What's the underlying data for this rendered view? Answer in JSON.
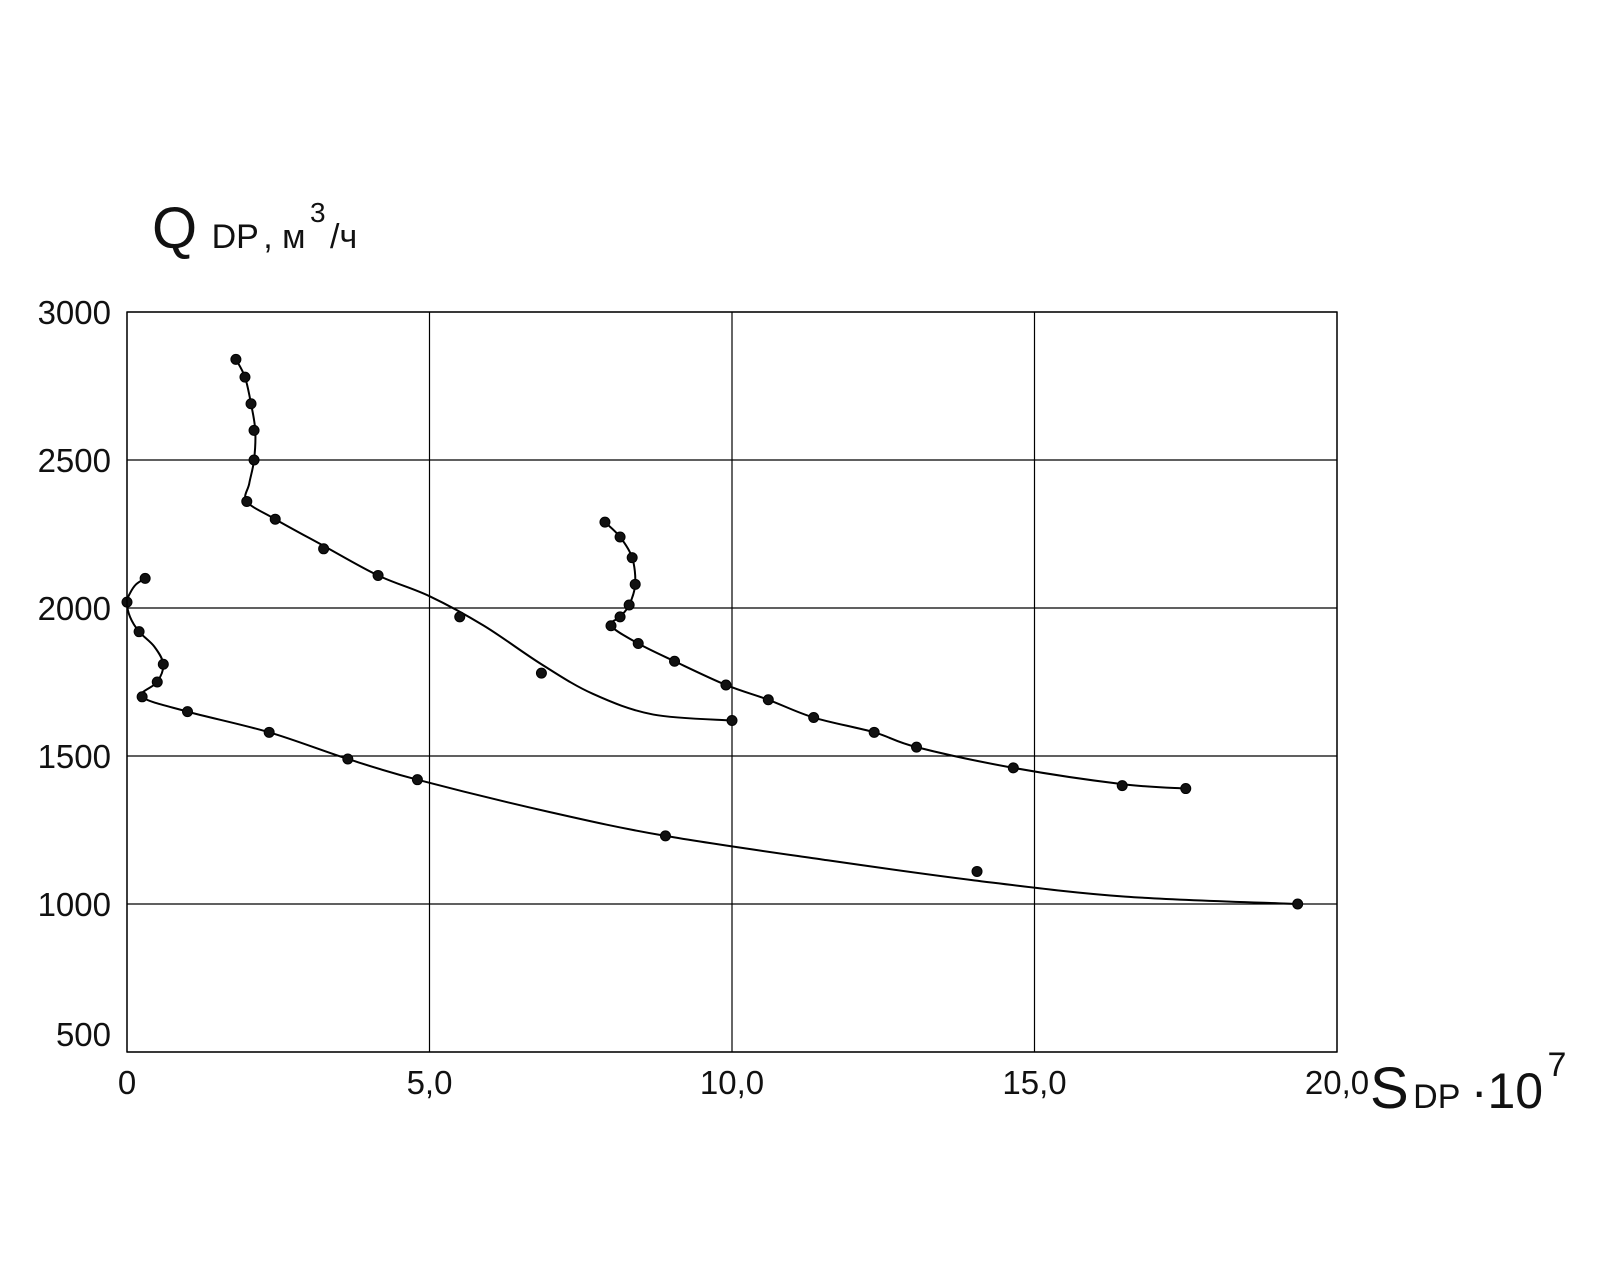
{
  "chart_data": {
    "type": "scatter",
    "title": "",
    "ylabel": {
      "main": "Q",
      "subscript": "DP",
      "unit_prefix": ", м",
      "unit_sup": "3",
      "unit_suffix": "/ч"
    },
    "xlabel": {
      "main": "S",
      "subscript": "DP",
      "multiplier": "·10",
      "multiplier_sup": "7"
    },
    "xlim": [
      0,
      20
    ],
    "ylim": [
      500,
      3000
    ],
    "x_ticks": [
      {
        "value": 0,
        "label": "0"
      },
      {
        "value": 5,
        "label": "5,0"
      },
      {
        "value": 10,
        "label": "10,0"
      },
      {
        "value": 15,
        "label": "15,0"
      },
      {
        "value": 20,
        "label": "20,0"
      }
    ],
    "y_ticks": [
      {
        "value": 500,
        "label": "500"
      },
      {
        "value": 1000,
        "label": "1000"
      },
      {
        "value": 1500,
        "label": "1500"
      },
      {
        "value": 2000,
        "label": "2000"
      },
      {
        "value": 2500,
        "label": "2500"
      },
      {
        "value": 3000,
        "label": "3000"
      }
    ],
    "grid": true,
    "series": [
      {
        "points": [
          [
            0.3,
            2100
          ],
          [
            0.0,
            2020
          ],
          [
            0.2,
            1920
          ],
          [
            0.6,
            1810
          ],
          [
            0.5,
            1750
          ],
          [
            0.25,
            1700
          ],
          [
            1.0,
            1650
          ],
          [
            2.35,
            1580
          ],
          [
            3.65,
            1490
          ],
          [
            4.8,
            1420
          ],
          [
            8.9,
            1230
          ],
          [
            14.05,
            1110
          ],
          [
            19.35,
            1000
          ]
        ],
        "curve": [
          [
            0.3,
            2100
          ],
          [
            0.15,
            2080
          ],
          [
            0.05,
            2050
          ],
          [
            0.0,
            2020
          ],
          [
            0.05,
            1970
          ],
          [
            0.2,
            1920
          ],
          [
            0.45,
            1870
          ],
          [
            0.6,
            1810
          ],
          [
            0.5,
            1750
          ],
          [
            0.25,
            1700
          ],
          [
            1.0,
            1650
          ],
          [
            2.35,
            1580
          ],
          [
            3.65,
            1490
          ],
          [
            4.8,
            1420
          ],
          [
            7.0,
            1310
          ],
          [
            8.9,
            1230
          ],
          [
            11.5,
            1150
          ],
          [
            14.0,
            1080
          ],
          [
            16.5,
            1025
          ],
          [
            19.35,
            1000
          ]
        ]
      },
      {
        "points": [
          [
            1.8,
            2840
          ],
          [
            1.95,
            2780
          ],
          [
            2.05,
            2690
          ],
          [
            2.1,
            2600
          ],
          [
            2.1,
            2500
          ],
          [
            1.98,
            2360
          ],
          [
            2.45,
            2300
          ],
          [
            3.25,
            2200
          ],
          [
            4.15,
            2110
          ],
          [
            5.5,
            1970
          ],
          [
            6.85,
            1780
          ],
          [
            10.0,
            1620
          ]
        ],
        "curve": [
          [
            1.8,
            2840
          ],
          [
            1.95,
            2780
          ],
          [
            2.05,
            2690
          ],
          [
            2.12,
            2600
          ],
          [
            2.1,
            2500
          ],
          [
            2.02,
            2420
          ],
          [
            1.98,
            2360
          ],
          [
            2.45,
            2300
          ],
          [
            3.25,
            2210
          ],
          [
            4.15,
            2110
          ],
          [
            5.0,
            2040
          ],
          [
            5.9,
            1940
          ],
          [
            6.85,
            1810
          ],
          [
            7.7,
            1710
          ],
          [
            8.7,
            1640
          ],
          [
            10.0,
            1620
          ]
        ]
      },
      {
        "points": [
          [
            7.9,
            2290
          ],
          [
            8.15,
            2240
          ],
          [
            8.35,
            2170
          ],
          [
            8.4,
            2080
          ],
          [
            8.3,
            2010
          ],
          [
            8.15,
            1970
          ],
          [
            8.0,
            1940
          ],
          [
            8.45,
            1880
          ],
          [
            9.05,
            1820
          ],
          [
            9.9,
            1740
          ],
          [
            10.6,
            1690
          ],
          [
            11.35,
            1630
          ],
          [
            12.35,
            1580
          ],
          [
            13.05,
            1530
          ],
          [
            14.65,
            1460
          ],
          [
            16.45,
            1400
          ],
          [
            17.5,
            1390
          ]
        ],
        "curve": [
          [
            7.9,
            2290
          ],
          [
            8.15,
            2240
          ],
          [
            8.35,
            2170
          ],
          [
            8.4,
            2080
          ],
          [
            8.3,
            2010
          ],
          [
            8.15,
            1970
          ],
          [
            8.0,
            1940
          ],
          [
            8.45,
            1880
          ],
          [
            9.05,
            1820
          ],
          [
            9.9,
            1740
          ],
          [
            10.6,
            1690
          ],
          [
            11.35,
            1630
          ],
          [
            12.35,
            1580
          ],
          [
            13.05,
            1530
          ],
          [
            14.65,
            1460
          ],
          [
            16.45,
            1405
          ],
          [
            17.5,
            1390
          ]
        ]
      }
    ]
  }
}
